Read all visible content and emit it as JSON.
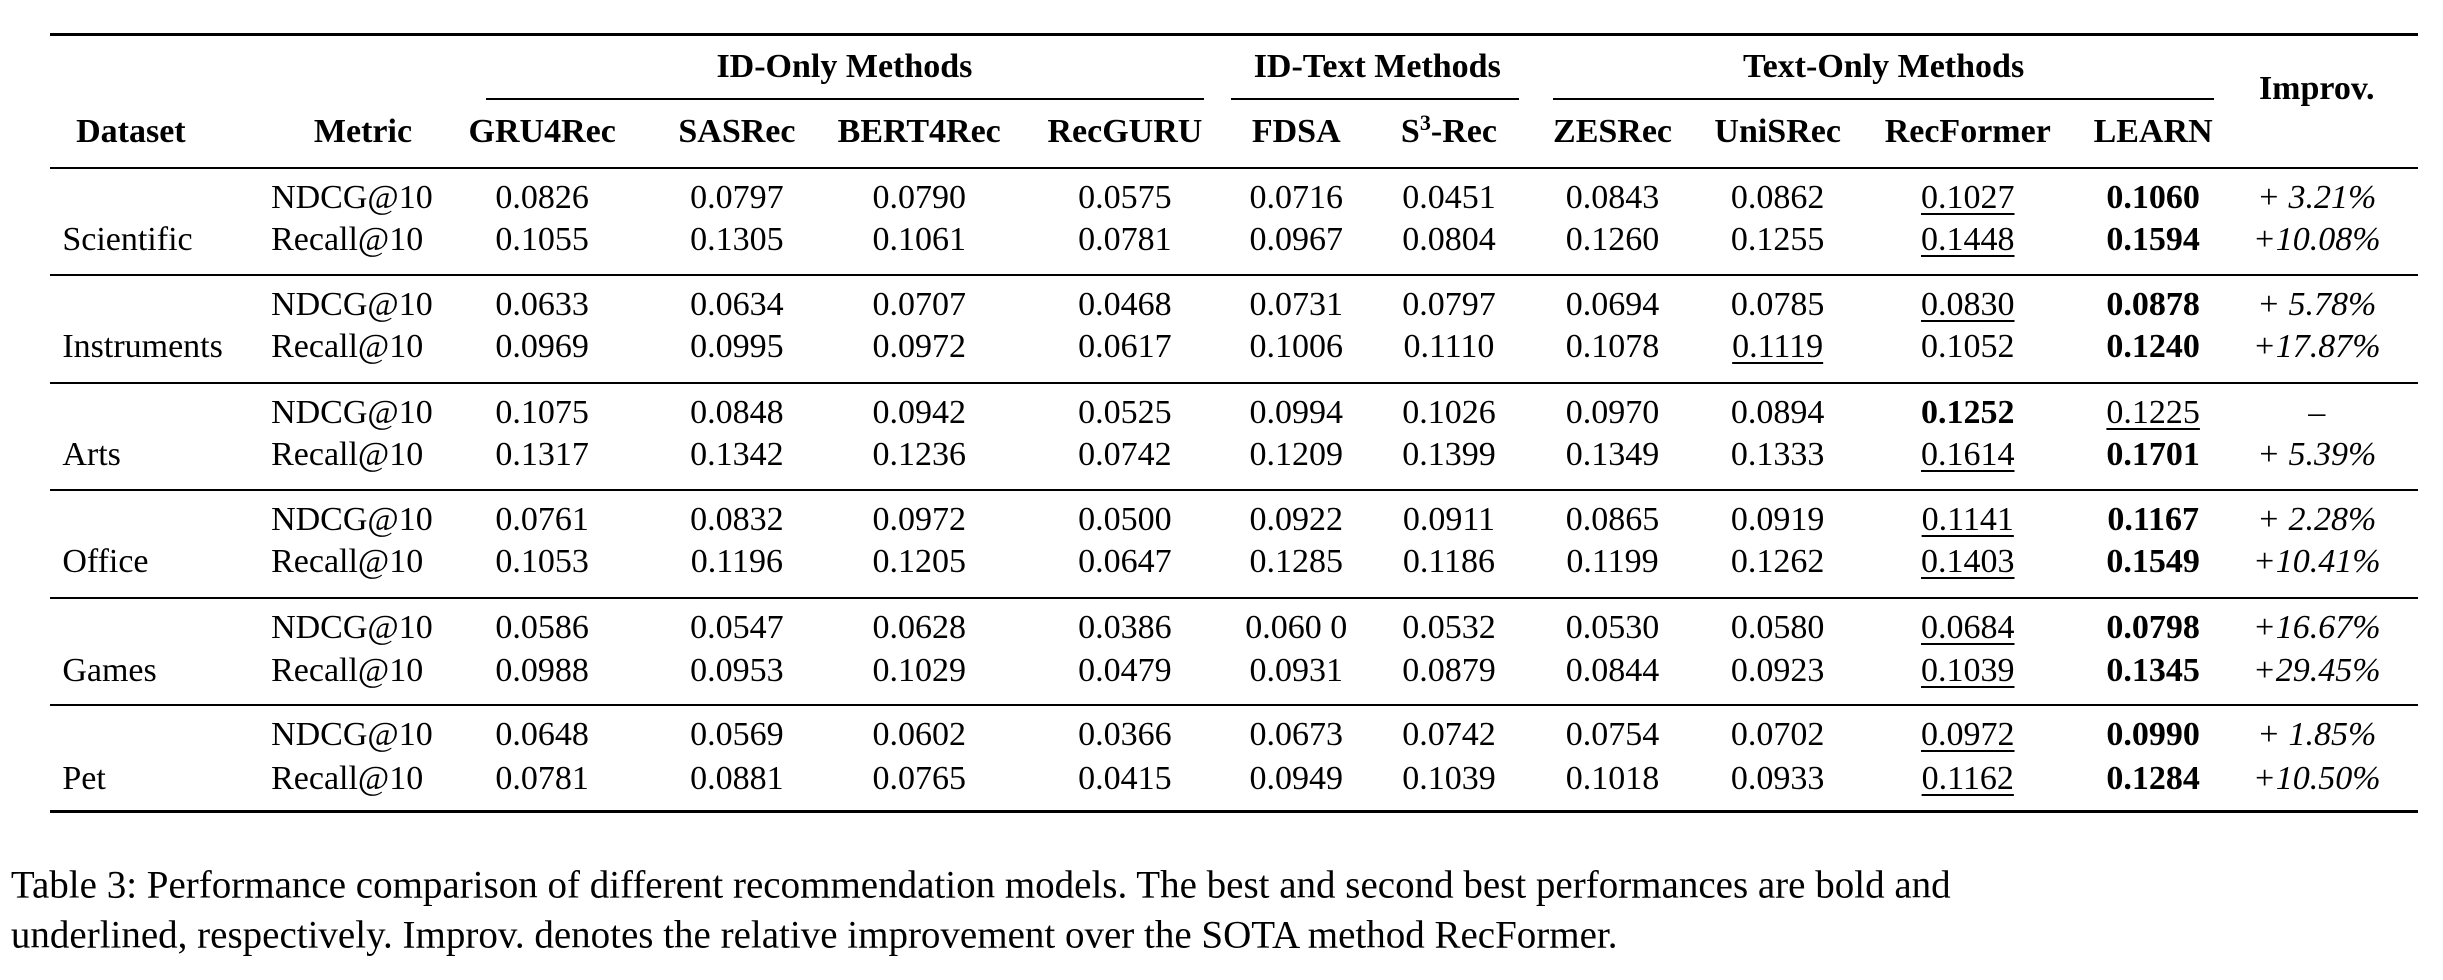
{
  "table": {
    "header": {
      "dataset": "Dataset",
      "metric": "Metric",
      "improv": "Improv.",
      "groups": [
        "ID-Only Methods",
        "ID-Text Methods",
        "Text-Only Methods"
      ],
      "columns": [
        "GRU4Rec",
        "SASRec",
        "BERT4Rec",
        "RecGURU",
        "FDSA",
        [
          "S",
          "3",
          "-Rec"
        ],
        "ZESRec",
        "UniSRec",
        "RecFormer",
        "LEARN"
      ]
    },
    "datasets": [
      {
        "name": "Scientific",
        "rows": [
          {
            "metric": "NDCG@10",
            "values": [
              "0.0826",
              "0.0797",
              "0.0790",
              "0.0575",
              "0.0716",
              "0.0451",
              "0.0843",
              "0.0862",
              "0.1027",
              "0.1060"
            ],
            "improv": "+ 3.21%",
            "best": 9,
            "second": 8
          },
          {
            "metric": "Recall@10",
            "values": [
              "0.1055",
              "0.1305",
              "0.1061",
              "0.0781",
              "0.0967",
              "0.0804",
              "0.1260",
              "0.1255",
              "0.1448",
              "0.1594"
            ],
            "improv": "+10.08%",
            "best": 9,
            "second": 8
          }
        ]
      },
      {
        "name": "Instruments",
        "rows": [
          {
            "metric": "NDCG@10",
            "values": [
              "0.0633",
              "0.0634",
              "0.0707",
              "0.0468",
              "0.0731",
              "0.0797",
              "0.0694",
              "0.0785",
              "0.0830",
              "0.0878"
            ],
            "improv": "+ 5.78%",
            "best": 9,
            "second": 8
          },
          {
            "metric": "Recall@10",
            "values": [
              "0.0969",
              "0.0995",
              "0.0972",
              "0.0617",
              "0.1006",
              "0.1110",
              "0.1078",
              "0.1119",
              "0.1052",
              "0.1240"
            ],
            "improv": "+17.87%",
            "best": 9,
            "second": 7
          }
        ]
      },
      {
        "name": "Arts",
        "rows": [
          {
            "metric": "NDCG@10",
            "values": [
              "0.1075",
              "0.0848",
              "0.0942",
              "0.0525",
              "0.0994",
              "0.1026",
              "0.0970",
              "0.0894",
              "0.1252",
              "0.1225"
            ],
            "improv": "–",
            "best": 8,
            "second": 9
          },
          {
            "metric": "Recall@10",
            "values": [
              "0.1317",
              "0.1342",
              "0.1236",
              "0.0742",
              "0.1209",
              "0.1399",
              "0.1349",
              "0.1333",
              "0.1614",
              "0.1701"
            ],
            "improv": "+ 5.39%",
            "best": 9,
            "second": 8
          }
        ]
      },
      {
        "name": "Office",
        "rows": [
          {
            "metric": "NDCG@10",
            "values": [
              "0.0761",
              "0.0832",
              "0.0972",
              "0.0500",
              "0.0922",
              "0.0911",
              "0.0865",
              "0.0919",
              "0.1141",
              "0.1167"
            ],
            "improv": "+ 2.28%",
            "best": 9,
            "second": 8
          },
          {
            "metric": "Recall@10",
            "values": [
              "0.1053",
              "0.1196",
              "0.1205",
              "0.0647",
              "0.1285",
              "0.1186",
              "0.1199",
              "0.1262",
              "0.1403",
              "0.1549"
            ],
            "improv": "+10.41%",
            "best": 9,
            "second": 8
          }
        ]
      },
      {
        "name": "Games",
        "rows": [
          {
            "metric": "NDCG@10",
            "values": [
              "0.0586",
              "0.0547",
              "0.0628",
              "0.0386",
              "0.060 0",
              "0.0532",
              "0.0530",
              "0.0580",
              "0.0684",
              "0.0798"
            ],
            "improv": "+16.67%",
            "best": 9,
            "second": 8
          },
          {
            "metric": "Recall@10",
            "values": [
              "0.0988",
              "0.0953",
              "0.1029",
              "0.0479",
              "0.0931",
              "0.0879",
              "0.0844",
              "0.0923",
              "0.1039",
              "0.1345"
            ],
            "improv": "+29.45%",
            "best": 9,
            "second": 8
          }
        ]
      },
      {
        "name": "Pet",
        "rows": [
          {
            "metric": "NDCG@10",
            "values": [
              "0.0648",
              "0.0569",
              "0.0602",
              "0.0366",
              "0.0673",
              "0.0742",
              "0.0754",
              "0.0702",
              "0.0972",
              "0.0990"
            ],
            "improv": "+ 1.85%",
            "best": 9,
            "second": 8
          },
          {
            "metric": "Recall@10",
            "values": [
              "0.0781",
              "0.0881",
              "0.0765",
              "0.0415",
              "0.0949",
              "0.1039",
              "0.1018",
              "0.0933",
              "0.1162",
              "0.1284"
            ],
            "improv": "+10.50%",
            "best": 9,
            "second": 8
          }
        ]
      }
    ]
  },
  "caption": [
    "Table 3: Performance comparison of different recommendation models. The best and second best performances are bold and",
    "underlined, respectively. Improv. denotes the relative improvement over the SOTA method RecFormer."
  ]
}
